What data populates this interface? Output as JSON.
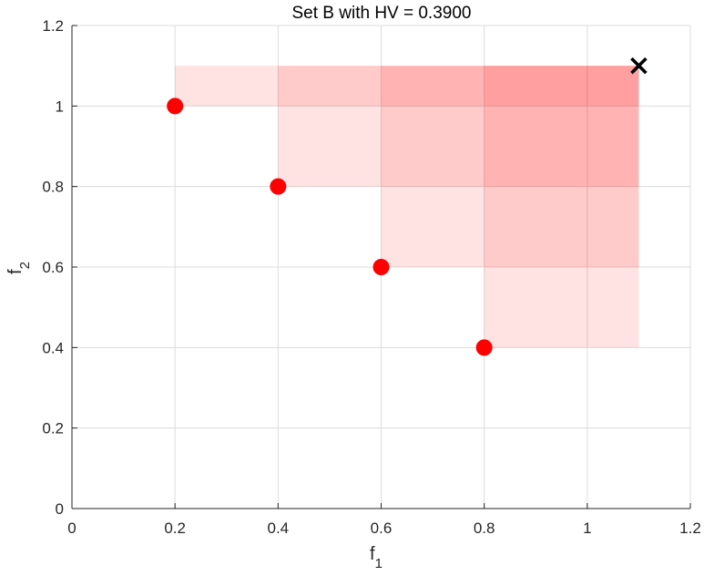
{
  "chart_data": {
    "type": "scatter",
    "title": "Set B with HV = 0.3900",
    "xlabel": {
      "base": "f",
      "sub": "1"
    },
    "ylabel": {
      "base": "f",
      "sub": "2"
    },
    "xlim": [
      0,
      1.2
    ],
    "ylim": [
      0,
      1.2
    ],
    "xticks": [
      "0",
      "0.2",
      "0.4",
      "0.6",
      "0.8",
      "1",
      "1.2"
    ],
    "yticks": [
      "0",
      "0.2",
      "0.4",
      "0.6",
      "0.8",
      "1",
      "1.2"
    ],
    "grid": true,
    "points": {
      "x": [
        0.2,
        0.4,
        0.6,
        0.8
      ],
      "y": [
        1.0,
        0.8,
        0.6,
        0.4
      ],
      "color": "#ff0000",
      "marker": "circle"
    },
    "reference_point": {
      "x": 1.1,
      "y": 1.1,
      "color": "#000000",
      "marker": "x"
    },
    "dominated_region": {
      "color": "#ff0000",
      "opacity": 0.11,
      "anchor": "reference_point"
    }
  }
}
